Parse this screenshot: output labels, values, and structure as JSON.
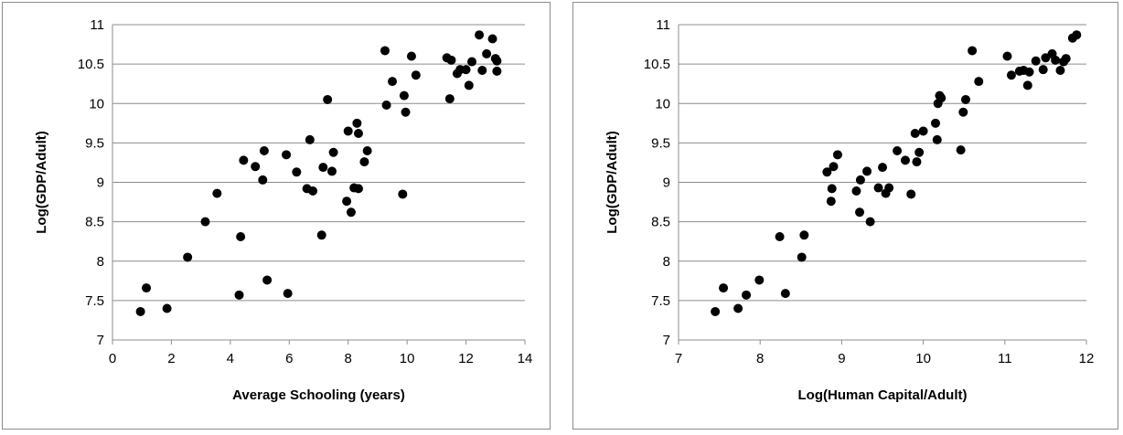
{
  "chart_data": [
    {
      "type": "scatter",
      "title": "",
      "xlabel": "Average Schooling (years)",
      "ylabel": "Log(GDP/Adult)",
      "xlim": [
        0,
        14
      ],
      "ylim": [
        7,
        11
      ],
      "xticks": [
        0,
        2,
        4,
        6,
        8,
        10,
        12,
        14
      ],
      "yticks": [
        7,
        7.5,
        8,
        8.5,
        9,
        9.5,
        10,
        10.5,
        11
      ],
      "ytick_labels": [
        "7",
        "7.5",
        "8",
        "8.5",
        "9",
        "9.5",
        "10",
        "10.5",
        "11"
      ],
      "grid": "horizontal",
      "legend": "none",
      "marker_color": "#000000",
      "points": [
        [
          0.95,
          7.36
        ],
        [
          1.15,
          7.66
        ],
        [
          1.85,
          7.4
        ],
        [
          2.55,
          8.05
        ],
        [
          3.15,
          8.5
        ],
        [
          3.55,
          8.86
        ],
        [
          4.3,
          7.57
        ],
        [
          4.35,
          8.31
        ],
        [
          4.45,
          9.28
        ],
        [
          4.85,
          9.2
        ],
        [
          5.1,
          9.03
        ],
        [
          5.15,
          9.4
        ],
        [
          5.25,
          7.76
        ],
        [
          5.9,
          9.35
        ],
        [
          5.95,
          7.59
        ],
        [
          6.25,
          9.13
        ],
        [
          6.6,
          8.92
        ],
        [
          6.7,
          9.54
        ],
        [
          6.8,
          8.89
        ],
        [
          7.1,
          8.33
        ],
        [
          7.15,
          9.19
        ],
        [
          7.3,
          10.05
        ],
        [
          7.45,
          9.14
        ],
        [
          7.5,
          9.38
        ],
        [
          7.95,
          8.76
        ],
        [
          8.0,
          9.65
        ],
        [
          8.1,
          8.62
        ],
        [
          8.2,
          8.93
        ],
        [
          8.3,
          9.75
        ],
        [
          8.35,
          9.62
        ],
        [
          8.35,
          8.92
        ],
        [
          8.55,
          9.26
        ],
        [
          8.65,
          9.4
        ],
        [
          9.25,
          10.67
        ],
        [
          9.3,
          9.98
        ],
        [
          9.5,
          10.28
        ],
        [
          9.85,
          8.85
        ],
        [
          9.9,
          10.1
        ],
        [
          9.95,
          9.89
        ],
        [
          10.15,
          10.6
        ],
        [
          10.3,
          10.36
        ],
        [
          11.35,
          10.58
        ],
        [
          11.45,
          10.06
        ],
        [
          11.5,
          10.55
        ],
        [
          11.7,
          10.38
        ],
        [
          11.8,
          10.43
        ],
        [
          12.0,
          10.43
        ],
        [
          12.1,
          10.23
        ],
        [
          12.2,
          10.53
        ],
        [
          12.45,
          10.87
        ],
        [
          12.55,
          10.42
        ],
        [
          12.7,
          10.63
        ],
        [
          12.9,
          10.82
        ],
        [
          13.0,
          10.57
        ],
        [
          13.05,
          10.54
        ],
        [
          13.05,
          10.41
        ]
      ]
    },
    {
      "type": "scatter",
      "title": "",
      "xlabel": "Log(Human Capital/Adult)",
      "ylabel": "Log(GDP/Adult)",
      "xlim": [
        7,
        12
      ],
      "ylim": [
        7,
        11
      ],
      "xticks": [
        7,
        8,
        9,
        10,
        11,
        12
      ],
      "yticks": [
        7,
        7.5,
        8,
        8.5,
        9,
        9.5,
        10,
        10.5,
        11
      ],
      "ytick_labels": [
        "7",
        "7.5",
        "8",
        "8.5",
        "9",
        "9.5",
        "10",
        "10.5",
        "11"
      ],
      "grid": "horizontal",
      "legend": "none",
      "marker_color": "#000000",
      "points": [
        [
          7.45,
          7.36
        ],
        [
          7.55,
          7.66
        ],
        [
          7.73,
          7.4
        ],
        [
          7.83,
          7.57
        ],
        [
          7.99,
          7.76
        ],
        [
          8.24,
          8.31
        ],
        [
          8.31,
          7.59
        ],
        [
          8.51,
          8.05
        ],
        [
          8.54,
          8.33
        ],
        [
          8.82,
          9.13
        ],
        [
          8.87,
          8.76
        ],
        [
          8.88,
          8.92
        ],
        [
          8.9,
          9.2
        ],
        [
          8.95,
          9.35
        ],
        [
          9.18,
          8.89
        ],
        [
          9.22,
          8.62
        ],
        [
          9.23,
          9.03
        ],
        [
          9.31,
          9.14
        ],
        [
          9.35,
          8.5
        ],
        [
          9.45,
          8.93
        ],
        [
          9.5,
          9.19
        ],
        [
          9.54,
          8.86
        ],
        [
          9.58,
          8.93
        ],
        [
          9.68,
          9.4
        ],
        [
          9.78,
          9.28
        ],
        [
          9.85,
          8.85
        ],
        [
          9.9,
          9.62
        ],
        [
          9.92,
          9.26
        ],
        [
          9.95,
          9.38
        ],
        [
          10.0,
          9.65
        ],
        [
          10.15,
          9.75
        ],
        [
          10.17,
          9.54
        ],
        [
          10.18,
          10.0
        ],
        [
          10.2,
          10.1
        ],
        [
          10.22,
          10.07
        ],
        [
          10.46,
          9.41
        ],
        [
          10.49,
          9.89
        ],
        [
          10.52,
          10.05
        ],
        [
          10.6,
          10.67
        ],
        [
          10.68,
          10.28
        ],
        [
          11.03,
          10.6
        ],
        [
          11.08,
          10.36
        ],
        [
          11.18,
          10.41
        ],
        [
          11.23,
          10.42
        ],
        [
          11.28,
          10.23
        ],
        [
          11.3,
          10.4
        ],
        [
          11.38,
          10.54
        ],
        [
          11.47,
          10.43
        ],
        [
          11.5,
          10.58
        ],
        [
          11.58,
          10.63
        ],
        [
          11.62,
          10.55
        ],
        [
          11.68,
          10.42
        ],
        [
          11.72,
          10.53
        ],
        [
          11.75,
          10.57
        ],
        [
          11.83,
          10.83
        ],
        [
          11.88,
          10.87
        ]
      ]
    }
  ]
}
